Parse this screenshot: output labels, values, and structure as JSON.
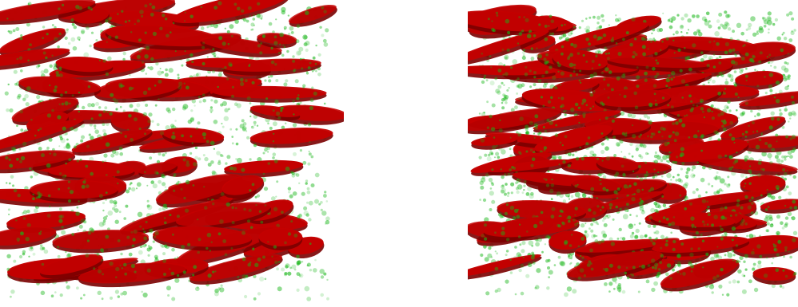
{
  "figure": {
    "panels": [
      {
        "id": "left",
        "description_name": "3d-volume-left",
        "colors": {
          "particles": "#16b516",
          "flakes_fill": "#c40000",
          "flakes_edge": "#7a0000"
        }
      },
      {
        "id": "right",
        "description_name": "3d-volume-right",
        "colors": {
          "particles": "#16b516",
          "flakes_fill": "#c40000",
          "flakes_edge": "#7a0000"
        }
      }
    ]
  }
}
